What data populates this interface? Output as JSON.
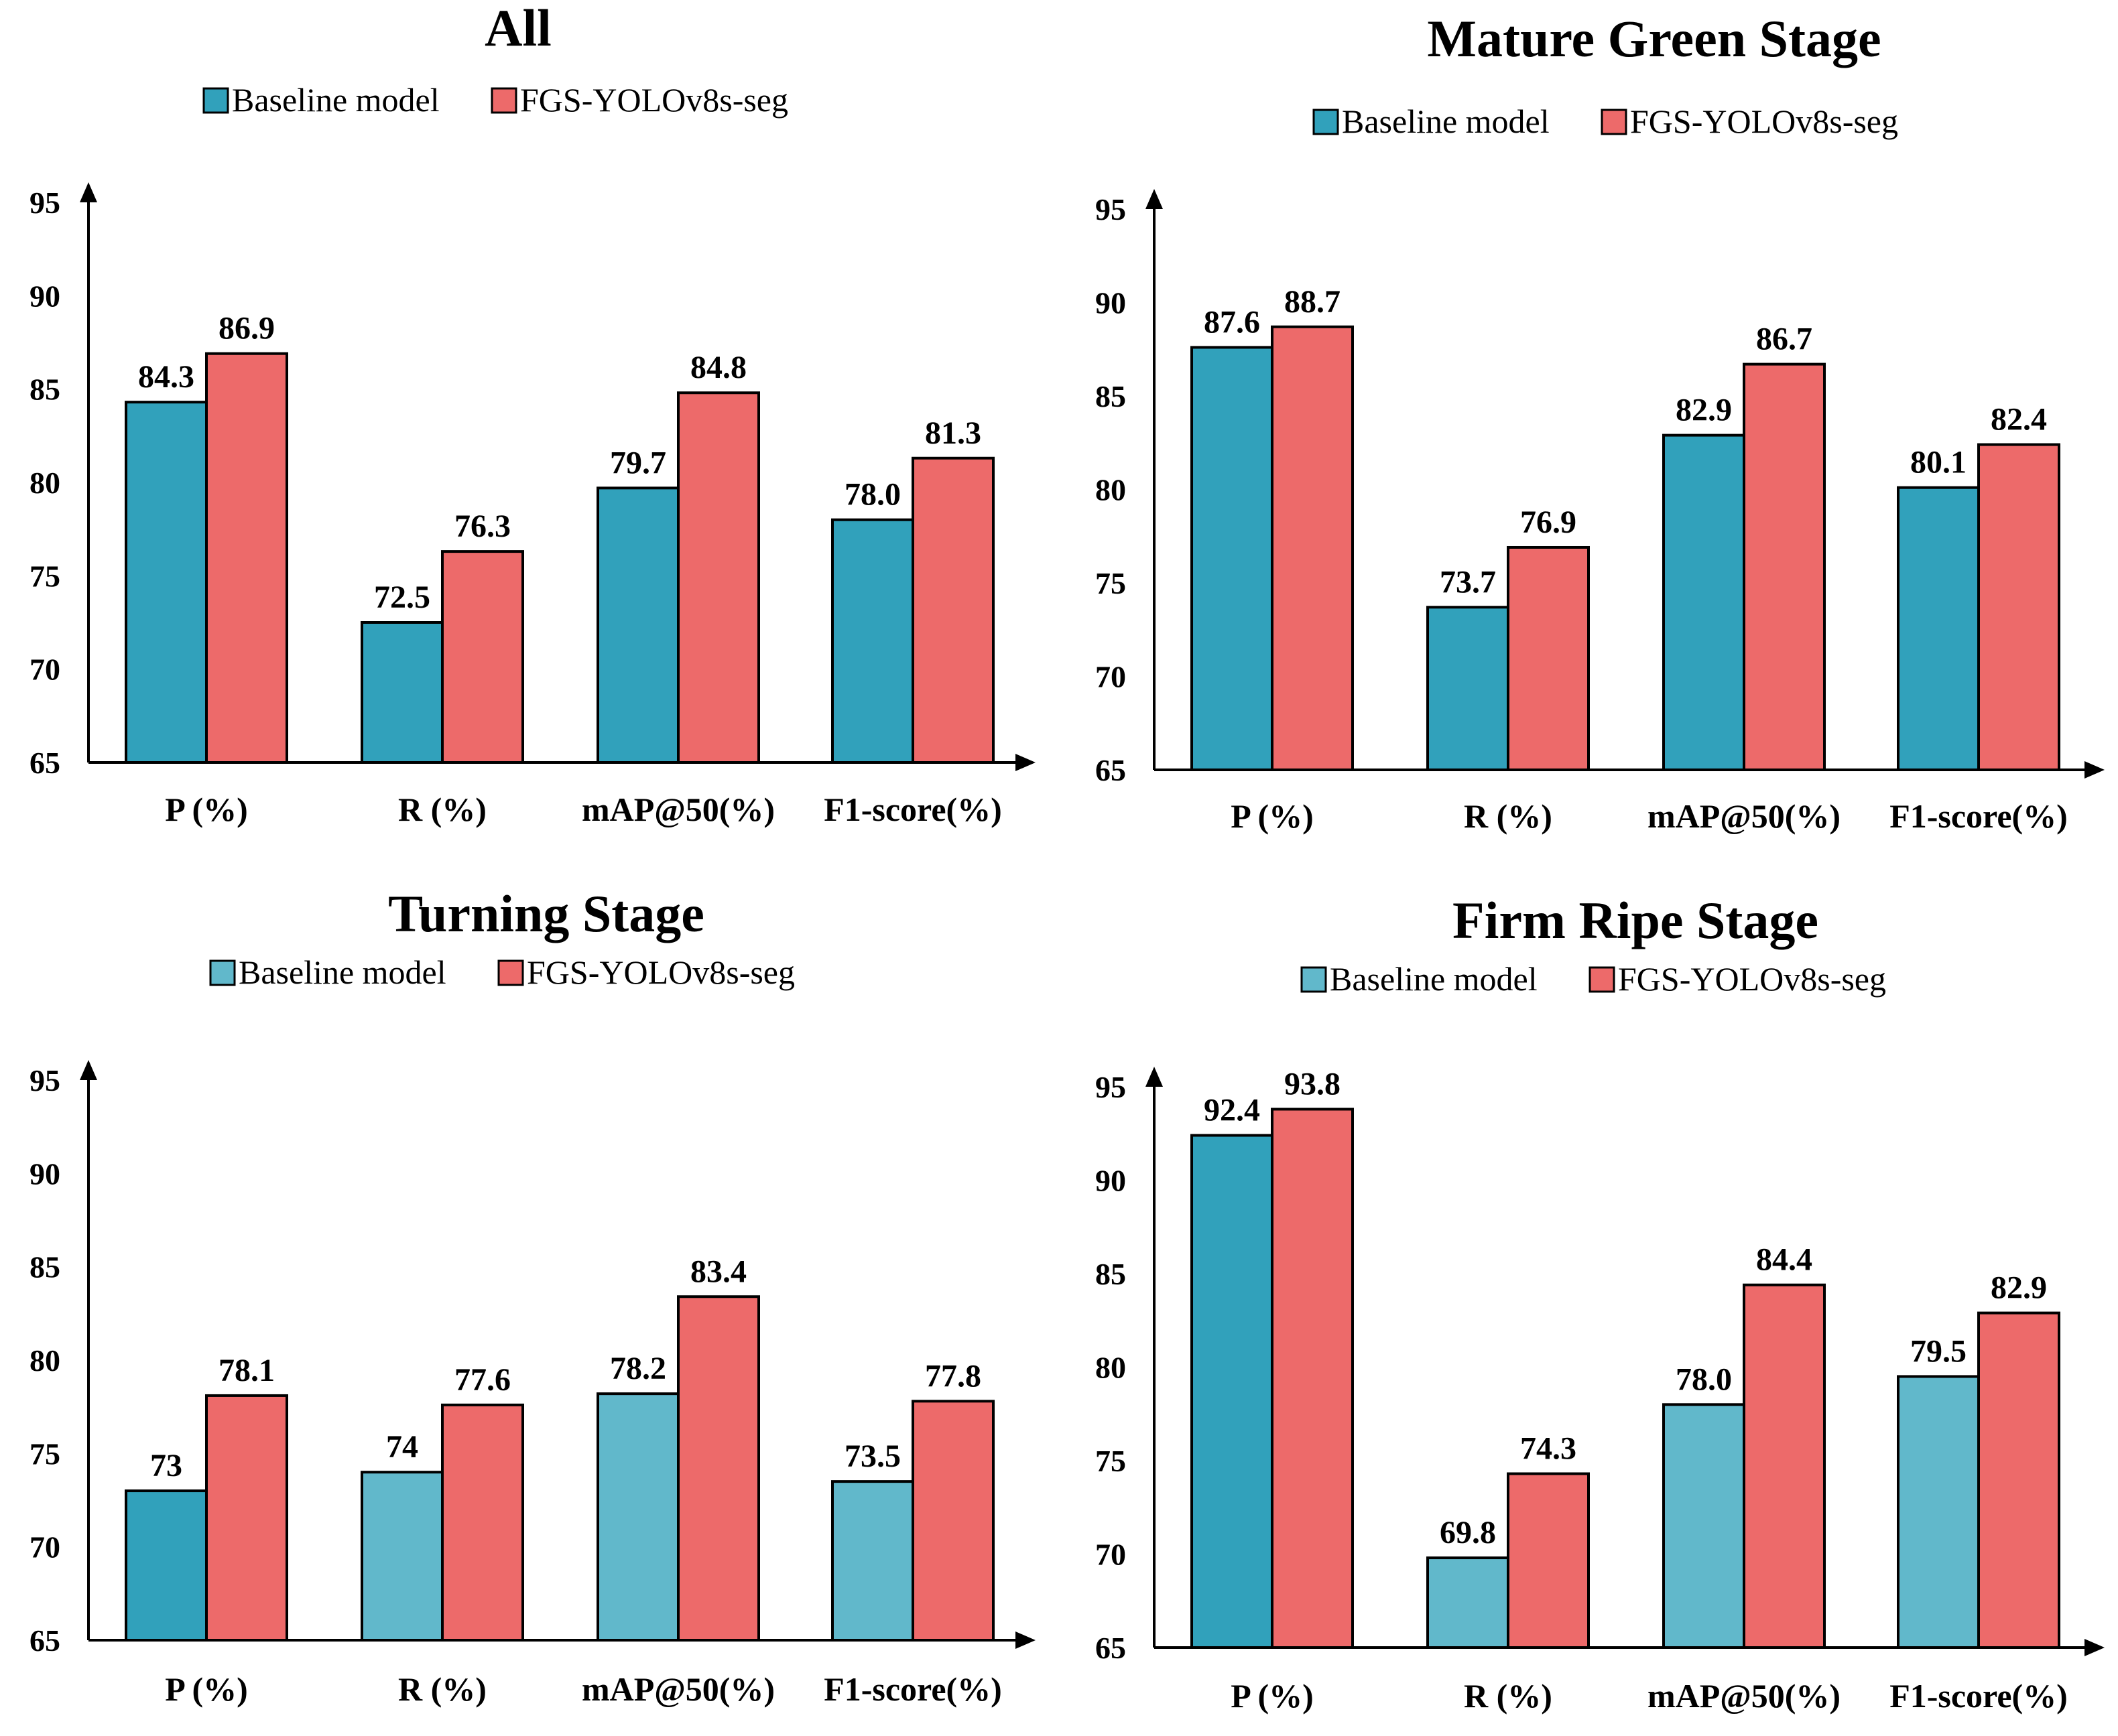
{
  "chart_data": [
    {
      "type": "bar",
      "title": "All",
      "categories": [
        "P (%)",
        "R (%)",
        "mAP@50(%)",
        "F1-score(%)"
      ],
      "series": [
        {
          "name": "Baseline model",
          "values": [
            84.3,
            72.5,
            79.7,
            78.0
          ],
          "labels": [
            "84.3",
            "72.5",
            "79.7",
            "78.0"
          ],
          "colors": [
            "#31A1BB",
            "#31A1BB",
            "#31A1BB",
            "#31A1BB"
          ]
        },
        {
          "name": "FGS-YOLOv8s-seg",
          "values": [
            86.9,
            76.3,
            84.8,
            81.3
          ],
          "labels": [
            "86.9",
            "76.3",
            "84.8",
            "81.3"
          ],
          "colors": [
            "#ED6A6A",
            "#ED6A6A",
            "#ED6A6A",
            "#ED6A6A"
          ]
        }
      ],
      "yticks": [
        "65",
        "70",
        "75",
        "80",
        "85",
        "90",
        "95"
      ],
      "ylim": [
        65,
        95
      ],
      "xlabel": "",
      "ylabel": "",
      "legend": "top-center",
      "grid": false
    },
    {
      "type": "bar",
      "title": "Mature Green Stage",
      "categories": [
        "P (%)",
        "R (%)",
        "mAP@50(%)",
        "F1-score(%)"
      ],
      "series": [
        {
          "name": "Baseline model",
          "values": [
            87.6,
            73.7,
            82.9,
            80.1
          ],
          "labels": [
            "87.6",
            "73.7",
            "82.9",
            "80.1"
          ],
          "colors": [
            "#31A1BB",
            "#31A1BB",
            "#31A1BB",
            "#31A1BB"
          ]
        },
        {
          "name": "FGS-YOLOv8s-seg",
          "values": [
            88.7,
            76.9,
            86.7,
            82.4
          ],
          "labels": [
            "88.7",
            "76.9",
            "86.7",
            "82.4"
          ],
          "colors": [
            "#ED6A6A",
            "#ED6A6A",
            "#ED6A6A",
            "#ED6A6A"
          ]
        }
      ],
      "yticks": [
        "65",
        "70",
        "75",
        "80",
        "85",
        "90",
        "95"
      ],
      "ylim": [
        65,
        95
      ],
      "xlabel": "",
      "ylabel": "",
      "legend": "top-center",
      "grid": false
    },
    {
      "type": "bar",
      "title": "Turning Stage",
      "categories": [
        "P (%)",
        "R (%)",
        "mAP@50(%)",
        "F1-score(%)"
      ],
      "series": [
        {
          "name": "Baseline model",
          "values": [
            73,
            74,
            78.2,
            73.5
          ],
          "labels": [
            "73",
            "74",
            "78.2",
            "73.5"
          ],
          "colors": [
            "#31A1BB",
            "#61B8CB",
            "#61B8CB",
            "#61B8CB"
          ]
        },
        {
          "name": "FGS-YOLOv8s-seg",
          "values": [
            78.1,
            77.6,
            83.4,
            77.8
          ],
          "labels": [
            "78.1",
            "77.6",
            "83.4",
            "77.8"
          ],
          "colors": [
            "#ED6A6A",
            "#ED6A6A",
            "#ED6A6A",
            "#ED6A6A"
          ]
        }
      ],
      "yticks": [
        "65",
        "70",
        "75",
        "80",
        "85",
        "90",
        "95"
      ],
      "ylim": [
        65,
        95
      ],
      "xlabel": "",
      "ylabel": "",
      "legend": "top-center",
      "grid": false
    },
    {
      "type": "bar",
      "title": "Firm Ripe Stage",
      "categories": [
        "P (%)",
        "R (%)",
        "mAP@50(%)",
        "F1-score(%)"
      ],
      "series": [
        {
          "name": "Baseline model",
          "values": [
            92.4,
            69.8,
            78.0,
            79.5
          ],
          "labels": [
            "92.4",
            "69.8",
            "78.0",
            "79.5"
          ],
          "colors": [
            "#31A1BB",
            "#61B8CB",
            "#61B8CB",
            "#61B8CB"
          ]
        },
        {
          "name": "FGS-YOLOv8s-seg",
          "values": [
            93.8,
            74.3,
            84.4,
            82.9
          ],
          "labels": [
            "93.8",
            "74.3",
            "84.4",
            "82.9"
          ],
          "colors": [
            "#ED6A6A",
            "#ED6A6A",
            "#ED6A6A",
            "#ED6A6A"
          ]
        }
      ],
      "yticks": [
        "65",
        "70",
        "75",
        "80",
        "85",
        "90",
        "95"
      ],
      "ylim": [
        65,
        95
      ],
      "xlabel": "",
      "ylabel": "",
      "legend": "top-center",
      "grid": false
    }
  ],
  "colors": {
    "baseline_legend": [
      "#31A1BB",
      "#31A1BB",
      "#61B8CB",
      "#61B8CB"
    ],
    "fgs_legend": "#ED6A6A",
    "axis": "#000000"
  }
}
